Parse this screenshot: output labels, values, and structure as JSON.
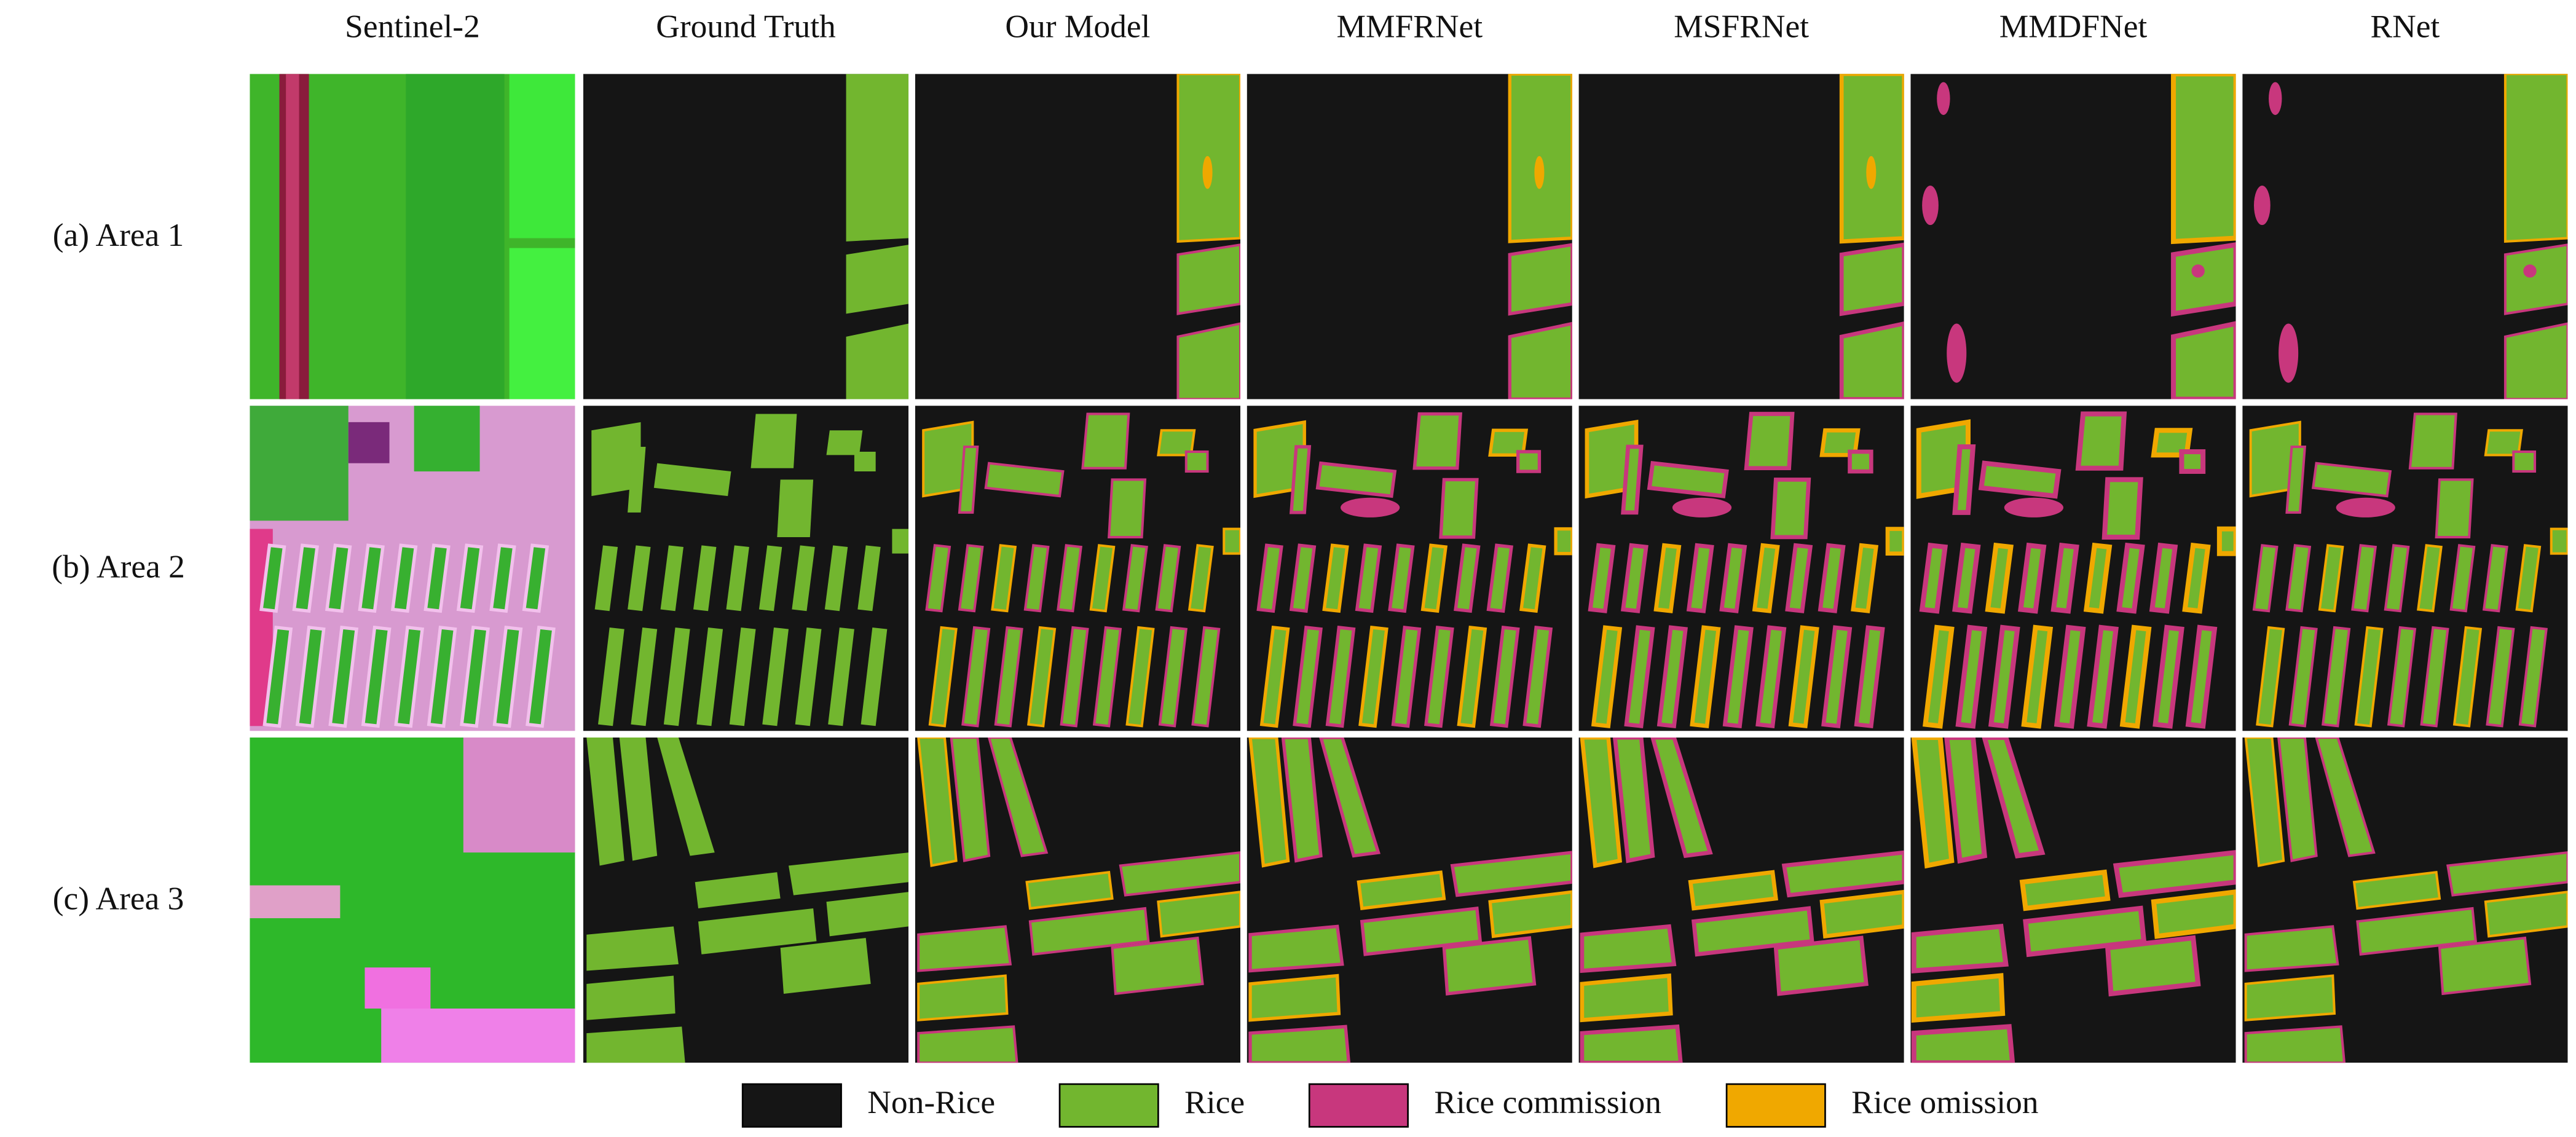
{
  "header": {
    "columns": [
      "Sentinel-2",
      "Ground Truth",
      "Our Model",
      "MMFRNet",
      "MSFRNet",
      "MMDFNet",
      "RNet"
    ]
  },
  "rows": [
    "(a) Area 1",
    "(b) Area 2",
    "(c) Area 3"
  ],
  "legend": [
    "Non-Rice",
    "Rice",
    "Rice commission",
    "Rice omission"
  ]
}
